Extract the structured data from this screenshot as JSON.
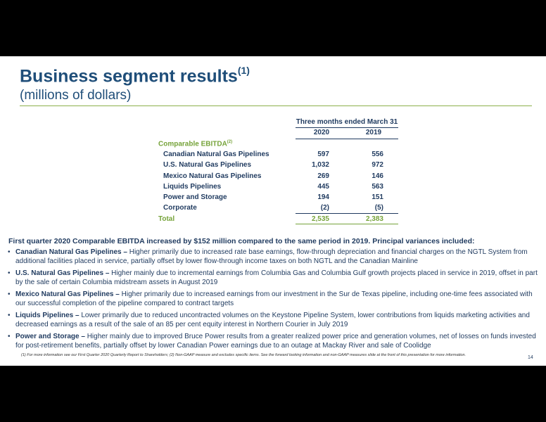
{
  "header": {
    "title": "Business segment results",
    "title_sup": "(1)",
    "subtitle": "(millions of dollars)"
  },
  "table": {
    "period_label": "Three months ended March 31",
    "years": [
      "2020",
      "2019"
    ],
    "section_label": "Comparable EBITDA",
    "section_sup": "(2)",
    "rows": [
      {
        "label": "Canadian Natural Gas Pipelines",
        "v2020": "597",
        "v2019": "556"
      },
      {
        "label": "U.S. Natural Gas Pipelines",
        "v2020": "1,032",
        "v2019": "972"
      },
      {
        "label": "Mexico Natural Gas Pipelines",
        "v2020": "269",
        "v2019": "146"
      },
      {
        "label": "Liquids Pipelines",
        "v2020": "445",
        "v2019": "563"
      },
      {
        "label": "Power and Storage",
        "v2020": "194",
        "v2019": "151"
      },
      {
        "label": "Corporate",
        "v2020": "(2)",
        "v2019": "(5)"
      }
    ],
    "total": {
      "label": "Total",
      "v2020": "2,535",
      "v2019": "2,383"
    }
  },
  "summary": "First quarter 2020 Comparable EBITDA increased by $152 million compared to the same period in 2019.  Principal variances included:",
  "bullets": [
    {
      "bold": "Canadian Natural Gas Pipelines –",
      "text": " Higher primarily due to increased rate base earnings, flow-through depreciation and financial charges on the NGTL System from additional facilities placed in service, partially offset by lower flow-through income taxes on both NGTL and the Canadian Mainline"
    },
    {
      "bold": "U.S. Natural Gas Pipelines –",
      "text": " Higher mainly due to incremental earnings from Columbia Gas and Columbia Gulf growth projects placed in service in 2019, offset in part by the sale of certain Columbia midstream assets in August 2019"
    },
    {
      "bold": "Mexico Natural Gas Pipelines –",
      "text": " Higher primarily due to increased earnings from our investment in the Sur de Texas pipeline, including one-time fees associated with our successful completion of the pipeline compared to contract targets"
    },
    {
      "bold": "Liquids Pipelines –",
      "text": "  Lower primarily due to reduced uncontracted volumes on the Keystone Pipeline System, lower contributions from liquids marketing activities and decreased earnings as a result of the sale of an 85 per cent equity interest in Northern Courier in July 2019"
    },
    {
      "bold": "Power and Storage –",
      "text": "  Higher mainly due to improved Bruce Power results from a greater realized power price and generation volumes, net of losses on funds invested for post-retirement benefits, partially offset by lower Canadian Power earnings due to an outage at Mackay River and sale of Coolidge"
    }
  ],
  "footnote": "(1) For more information see our First Quarter 2020 Quarterly Report to Shareholders; (2) Non-GAAP measure and excludes specific items. See the forward looking information and non-GAAP measures slide at the front of this presentation for more information.",
  "page_number": "14"
}
